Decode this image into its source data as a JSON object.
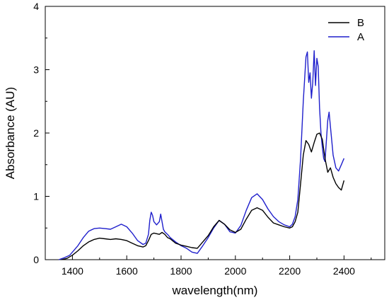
{
  "chart_data": {
    "type": "line",
    "title": "",
    "xlabel": "wavelength(nm)",
    "ylabel": "Absorbance (AU)",
    "xlim": [
      1300,
      2550
    ],
    "ylim": [
      0,
      4
    ],
    "xticks": [
      1400,
      1600,
      1800,
      2000,
      2200,
      2400
    ],
    "yticks": [
      0,
      1,
      2,
      3,
      4
    ],
    "xtick_labels": [
      "1400",
      "1600",
      "1800",
      "2000",
      "2200",
      "2400"
    ],
    "ytick_labels": [
      "0",
      "1",
      "2",
      "3",
      "4"
    ],
    "grid": false,
    "legend_position": "top-right",
    "series": [
      {
        "name": "B",
        "color": "#000000",
        "x": [
          1360,
          1380,
          1400,
          1420,
          1440,
          1460,
          1480,
          1500,
          1520,
          1540,
          1560,
          1580,
          1600,
          1620,
          1640,
          1660,
          1670,
          1680,
          1690,
          1700,
          1710,
          1720,
          1730,
          1740,
          1750,
          1760,
          1780,
          1800,
          1820,
          1840,
          1860,
          1880,
          1900,
          1920,
          1940,
          1960,
          1980,
          2000,
          2020,
          2040,
          2060,
          2080,
          2100,
          2120,
          2140,
          2160,
          2180,
          2200,
          2210,
          2220,
          2230,
          2240,
          2250,
          2260,
          2270,
          2280,
          2290,
          2300,
          2310,
          2320,
          2330,
          2340,
          2350,
          2360,
          2370,
          2380,
          2390,
          2400
        ],
        "y": [
          0.0,
          0.02,
          0.07,
          0.14,
          0.22,
          0.28,
          0.32,
          0.34,
          0.33,
          0.32,
          0.33,
          0.32,
          0.3,
          0.26,
          0.22,
          0.2,
          0.22,
          0.3,
          0.4,
          0.42,
          0.41,
          0.4,
          0.43,
          0.4,
          0.35,
          0.33,
          0.26,
          0.23,
          0.21,
          0.19,
          0.18,
          0.28,
          0.38,
          0.52,
          0.62,
          0.56,
          0.47,
          0.43,
          0.48,
          0.64,
          0.78,
          0.82,
          0.78,
          0.67,
          0.58,
          0.55,
          0.52,
          0.5,
          0.52,
          0.6,
          0.75,
          1.2,
          1.65,
          1.88,
          1.82,
          1.7,
          1.85,
          1.98,
          2.0,
          1.9,
          1.6,
          1.38,
          1.45,
          1.3,
          1.2,
          1.14,
          1.1,
          1.25
        ]
      },
      {
        "name": "A",
        "color": "#1f1fcc",
        "x": [
          1350,
          1370,
          1390,
          1400,
          1420,
          1440,
          1460,
          1480,
          1500,
          1520,
          1540,
          1560,
          1580,
          1600,
          1620,
          1640,
          1660,
          1670,
          1680,
          1685,
          1690,
          1695,
          1700,
          1710,
          1720,
          1725,
          1730,
          1735,
          1740,
          1750,
          1760,
          1780,
          1800,
          1820,
          1840,
          1860,
          1880,
          1900,
          1920,
          1940,
          1960,
          1980,
          2000,
          2020,
          2040,
          2060,
          2080,
          2100,
          2120,
          2140,
          2160,
          2180,
          2200,
          2210,
          2220,
          2230,
          2240,
          2250,
          2260,
          2265,
          2270,
          2275,
          2280,
          2285,
          2290,
          2295,
          2300,
          2305,
          2310,
          2315,
          2320,
          2325,
          2330,
          2340,
          2345,
          2350,
          2360,
          2370,
          2380,
          2390,
          2400
        ],
        "y": [
          0.0,
          0.03,
          0.07,
          0.12,
          0.22,
          0.35,
          0.45,
          0.49,
          0.5,
          0.49,
          0.48,
          0.52,
          0.56,
          0.52,
          0.42,
          0.3,
          0.24,
          0.26,
          0.4,
          0.62,
          0.75,
          0.7,
          0.6,
          0.55,
          0.6,
          0.72,
          0.6,
          0.48,
          0.44,
          0.4,
          0.35,
          0.28,
          0.22,
          0.18,
          0.12,
          0.1,
          0.22,
          0.35,
          0.5,
          0.62,
          0.56,
          0.44,
          0.42,
          0.54,
          0.78,
          0.98,
          1.04,
          0.95,
          0.8,
          0.68,
          0.6,
          0.55,
          0.52,
          0.56,
          0.68,
          0.95,
          1.6,
          2.5,
          3.2,
          3.28,
          2.8,
          2.95,
          2.55,
          2.8,
          3.3,
          2.75,
          3.18,
          3.05,
          2.4,
          2.0,
          1.78,
          1.6,
          1.55,
          2.2,
          2.33,
          2.1,
          1.65,
          1.45,
          1.4,
          1.5,
          1.6
        ]
      }
    ]
  }
}
